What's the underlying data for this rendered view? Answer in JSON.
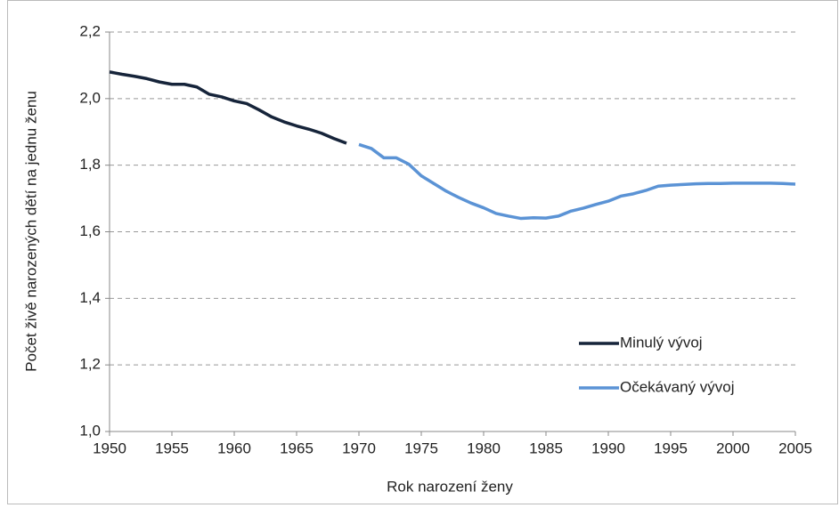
{
  "chart_data": {
    "type": "line",
    "x_label": "Rok narození ženy",
    "y_label": "Počet živě narozených dětí na jednu ženu",
    "xlim": [
      1950,
      2005
    ],
    "xticks": [
      1950,
      1955,
      1960,
      1965,
      1970,
      1975,
      1980,
      1985,
      1990,
      1995,
      2000,
      2005
    ],
    "ylim": [
      1.0,
      2.2
    ],
    "yticks": [
      {
        "value": 1.0,
        "label": "1,0"
      },
      {
        "value": 1.2,
        "label": "1,2"
      },
      {
        "value": 1.4,
        "label": "1,4"
      },
      {
        "value": 1.6,
        "label": "1,6"
      },
      {
        "value": 1.8,
        "label": "1,8"
      },
      {
        "value": 2.0,
        "label": "2,0"
      },
      {
        "value": 2.2,
        "label": "2,2"
      }
    ],
    "grid": true,
    "legend": "right",
    "series": [
      {
        "name": "Minulý vývoj",
        "color": "#16243a",
        "x": [
          1950,
          1951,
          1952,
          1953,
          1954,
          1955,
          1956,
          1957,
          1958,
          1959,
          1960,
          1961,
          1962,
          1963,
          1964,
          1965,
          1966,
          1967,
          1968,
          1969
        ],
        "values": [
          2.08,
          2.073,
          2.067,
          2.06,
          2.05,
          2.043,
          2.043,
          2.035,
          2.013,
          2.005,
          1.993,
          1.985,
          1.966,
          1.945,
          1.93,
          1.918,
          1.908,
          1.896,
          1.88,
          1.866
        ]
      },
      {
        "name": "Očekávaný vývoj",
        "color": "#5b93d5",
        "x": [
          1970,
          1971,
          1972,
          1973,
          1974,
          1975,
          1976,
          1977,
          1978,
          1979,
          1980,
          1981,
          1982,
          1983,
          1984,
          1985,
          1986,
          1987,
          1988,
          1989,
          1990,
          1991,
          1992,
          1993,
          1994,
          1995,
          1996,
          1997,
          1998,
          1999,
          2000,
          2001,
          2002,
          2003,
          2004,
          2005
        ],
        "values": [
          1.862,
          1.85,
          1.822,
          1.822,
          1.803,
          1.768,
          1.745,
          1.722,
          1.703,
          1.686,
          1.672,
          1.655,
          1.647,
          1.64,
          1.642,
          1.641,
          1.647,
          1.662,
          1.671,
          1.682,
          1.692,
          1.707,
          1.714,
          1.724,
          1.737,
          1.74,
          1.742,
          1.744,
          1.745,
          1.745,
          1.746,
          1.746,
          1.746,
          1.746,
          1.745,
          1.743
        ]
      }
    ]
  }
}
